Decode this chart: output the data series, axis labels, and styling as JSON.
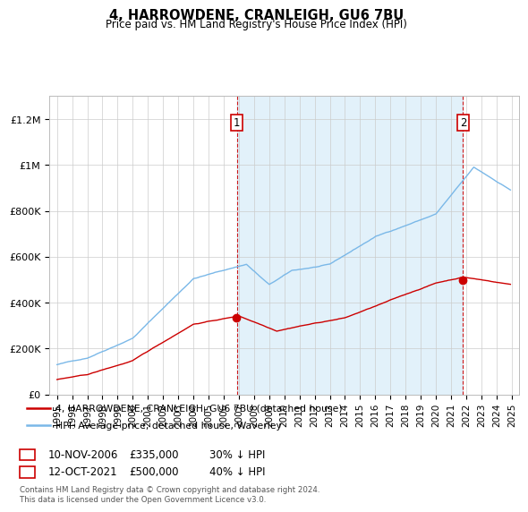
{
  "title": "4, HARROWDENE, CRANLEIGH, GU6 7BU",
  "subtitle": "Price paid vs. HM Land Registry's House Price Index (HPI)",
  "ylabel_ticks": [
    "£0",
    "£200K",
    "£400K",
    "£600K",
    "£800K",
    "£1M",
    "£1.2M"
  ],
  "ytick_values": [
    0,
    200000,
    400000,
    600000,
    800000,
    1000000,
    1200000
  ],
  "ylim": [
    0,
    1300000
  ],
  "hpi_color": "#7ab8e8",
  "hpi_fill_color": "#d0e8f8",
  "price_color": "#cc0000",
  "sale1_date_label": "10-NOV-2006",
  "sale1_price": 335000,
  "sale1_price_label": "£335,000",
  "sale1_hpi_diff": "30% ↓ HPI",
  "sale1_x": 2006.86,
  "sale2_date_label": "12-OCT-2021",
  "sale2_price": 500000,
  "sale2_price_label": "£500,000",
  "sale2_hpi_diff": "40% ↓ HPI",
  "sale2_x": 2021.79,
  "legend_line1": "4, HARROWDENE, CRANLEIGH, GU6 7BU (detached house)",
  "legend_line2": "HPI: Average price, detached house, Waverley",
  "footer": "Contains HM Land Registry data © Crown copyright and database right 2024.\nThis data is licensed under the Open Government Licence v3.0.",
  "xlim_left": 1994.5,
  "xlim_right": 2025.5
}
